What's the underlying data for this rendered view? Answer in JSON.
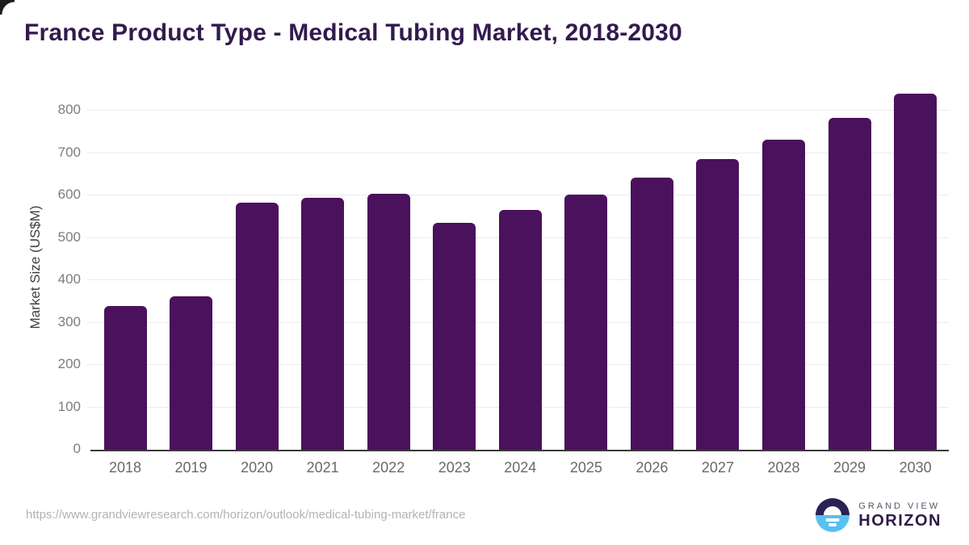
{
  "page": {
    "title": "France Product Type - Medical Tubing Market, 2018-2030"
  },
  "chart_data": {
    "type": "bar",
    "title": "France Product Type - Medical Tubing Market, 2018-2030",
    "categories": [
      "2018",
      "2019",
      "2020",
      "2021",
      "2022",
      "2023",
      "2024",
      "2025",
      "2026",
      "2027",
      "2028",
      "2029",
      "2030"
    ],
    "values": [
      339,
      362,
      582,
      595,
      604,
      536,
      566,
      602,
      641,
      685,
      731,
      782,
      840
    ],
    "xlabel": "",
    "ylabel": "Market Size (US$M)",
    "ylim": [
      0,
      800
    ],
    "yticks": [
      0,
      100,
      200,
      300,
      400,
      500,
      600,
      700,
      800
    ],
    "grid": "horizontal",
    "legend_position": "none",
    "bar_color": "#4A115C"
  },
  "footer": {
    "source_url": "https://www.grandviewresearch.com/horizon/outlook/medical-tubing-market/france"
  },
  "logo": {
    "line1": "GRAND VIEW",
    "line2": "HORIZON",
    "icon": "horizon-sunrise-icon",
    "icon_top_color": "#2B2153",
    "icon_bottom_color": "#58C1EF"
  },
  "colors": {
    "title_text": "#321A4E",
    "bar": "#4A115C",
    "axis_line": "#3A3A3A",
    "gridline": "#ECECEC",
    "y_tick_text": "#7D7D7D",
    "x_tick_text": "#696969",
    "axis_title_text": "#3F3F3F",
    "url_text": "#B3B3B3"
  }
}
